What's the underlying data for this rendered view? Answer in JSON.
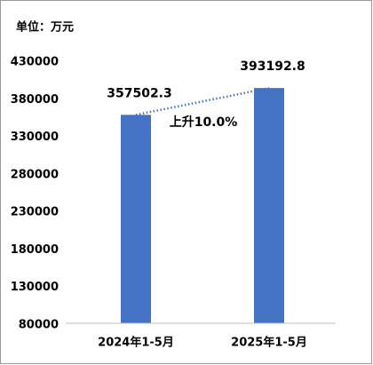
{
  "chart_data": {
    "type": "bar",
    "subtitle": "单位：万元",
    "annotation": "上升10.0%",
    "categories": [
      "2024年1-5月",
      "2025年1-5月"
    ],
    "values": [
      357502.3,
      393192.8
    ],
    "color": "#4472c4",
    "ylim": [
      80000,
      430000
    ],
    "yticks": [
      80000,
      130000,
      180000,
      230000,
      280000,
      330000,
      380000,
      430000
    ],
    "grid": false
  }
}
